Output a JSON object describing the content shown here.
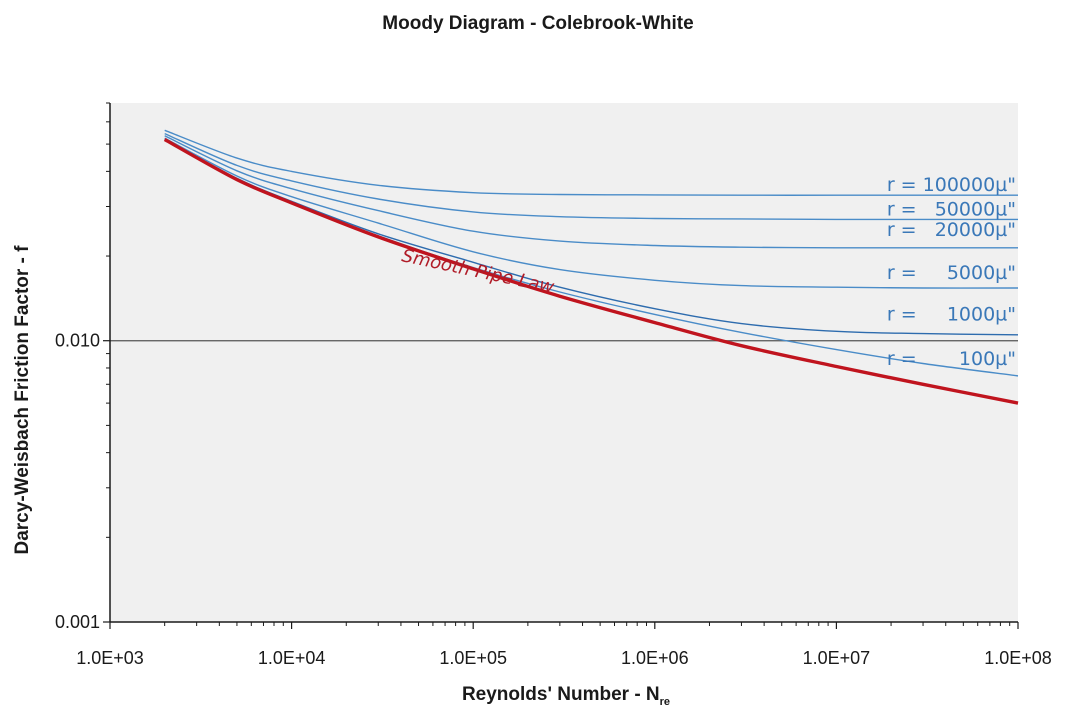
{
  "chart_data": {
    "type": "line",
    "title": "Moody Diagram - Colebrook-White",
    "xlabel": "Reynolds' Number - N",
    "xlabel_subscript": "re",
    "ylabel": "Darcy-Weisbach Friction Factor - f",
    "x_scale": "log",
    "y_scale": "log",
    "xlim": [
      1000,
      100000000
    ],
    "ylim": [
      0.001,
      0.07
    ],
    "x_tick_labels": [
      "1.0E+03",
      "1.0E+04",
      "1.0E+05",
      "1.0E+06",
      "1.0E+07",
      "1.0E+08"
    ],
    "y_tick_labels": [
      {
        "value": 0.001,
        "label": "0.001"
      },
      {
        "value": 0.01,
        "label": "0.010"
      }
    ],
    "gridline_y": 0.01,
    "series": [
      {
        "name": "Smooth Pipe Law",
        "color": "#c0141e",
        "role": "smooth",
        "x": [
          2000,
          5000,
          10000,
          30000,
          100000,
          300000,
          1000000,
          3000000,
          10000000,
          30000000,
          100000000
        ],
        "y": [
          0.0519,
          0.0374,
          0.0309,
          0.0234,
          0.018,
          0.0144,
          0.0116,
          0.0096,
          0.0081,
          0.007,
          0.006
        ]
      },
      {
        "name": "r =    100µ\"",
        "color": "#4a8cc8",
        "role": "rough",
        "x": [
          2000,
          5000,
          10000,
          30000,
          100000,
          300000,
          1000000,
          3000000,
          10000000,
          30000000,
          100000000
        ],
        "y": [
          0.052,
          0.0376,
          0.031,
          0.0236,
          0.0182,
          0.0149,
          0.0124,
          0.0107,
          0.0093,
          0.0083,
          0.0075
        ]
      },
      {
        "name": "r =   1000µ\"",
        "color": "#2e6cae",
        "role": "rough",
        "x": [
          2000,
          5000,
          10000,
          30000,
          100000,
          300000,
          1000000,
          3000000,
          10000000,
          30000000,
          100000000
        ],
        "y": [
          0.0521,
          0.0378,
          0.0313,
          0.024,
          0.019,
          0.0155,
          0.013,
          0.0115,
          0.0108,
          0.0106,
          0.0105
        ]
      },
      {
        "name": "r =   5000µ\"",
        "color": "#4a8cc8",
        "role": "rough",
        "x": [
          2000,
          5000,
          10000,
          30000,
          100000,
          300000,
          1000000,
          3000000,
          10000000,
          30000000,
          100000000
        ],
        "y": [
          0.0525,
          0.0385,
          0.0325,
          0.0262,
          0.0207,
          0.0179,
          0.0164,
          0.0157,
          0.0155,
          0.0154,
          0.0154
        ]
      },
      {
        "name": "r =  20000µ\"",
        "color": "#4a8cc8",
        "role": "rough",
        "x": [
          2000,
          5000,
          10000,
          30000,
          100000,
          300000,
          1000000,
          3000000,
          10000000,
          30000000,
          100000000
        ],
        "y": [
          0.0535,
          0.0402,
          0.0347,
          0.029,
          0.0245,
          0.0226,
          0.0218,
          0.0215,
          0.0214,
          0.0214,
          0.0214
        ]
      },
      {
        "name": "r =  50000µ\"",
        "color": "#4a8cc8",
        "role": "rough",
        "x": [
          2000,
          5000,
          10000,
          30000,
          100000,
          300000,
          1000000,
          3000000,
          10000000,
          30000000,
          100000000
        ],
        "y": [
          0.0545,
          0.042,
          0.037,
          0.0319,
          0.0287,
          0.0276,
          0.0272,
          0.0271,
          0.027,
          0.027,
          0.027
        ]
      },
      {
        "name": "r = 100000µ\"",
        "color": "#4a8cc8",
        "role": "rough",
        "x": [
          2000,
          5000,
          10000,
          30000,
          100000,
          300000,
          1000000,
          3000000,
          10000000,
          30000000,
          100000000
        ],
        "y": [
          0.056,
          0.0446,
          0.04,
          0.0357,
          0.0336,
          0.0331,
          0.033,
          0.0329,
          0.0329,
          0.0329,
          0.0329
        ]
      }
    ],
    "annotations": [
      {
        "text": "r = 100000µ\"",
        "x": 100000000,
        "y": 0.0341,
        "color": "#3a78b8"
      },
      {
        "text": "r =   50000µ\"",
        "x": 100000000,
        "y": 0.0279,
        "color": "#3a78b8"
      },
      {
        "text": "r =   20000µ\"",
        "x": 100000000,
        "y": 0.0236,
        "color": "#3a78b8"
      },
      {
        "text": "r =     5000µ\"",
        "x": 100000000,
        "y": 0.0166,
        "color": "#3a78b8"
      },
      {
        "text": "r =     1000µ\"",
        "x": 100000000,
        "y": 0.0118,
        "color": "#3a78b8"
      },
      {
        "text": "r =       100µ\"",
        "x": 100000000,
        "y": 0.0082,
        "color": "#3a78b8"
      },
      {
        "text": "Smooth Pipe Law",
        "x": 40000,
        "y": 0.0192,
        "color": "#b01c28",
        "rotate": 12
      }
    ],
    "grid": false,
    "legend": "none",
    "colors": {
      "plot_background": "#f0f0f0",
      "axis": "#1a1a1a",
      "gridline": "#555555"
    }
  }
}
